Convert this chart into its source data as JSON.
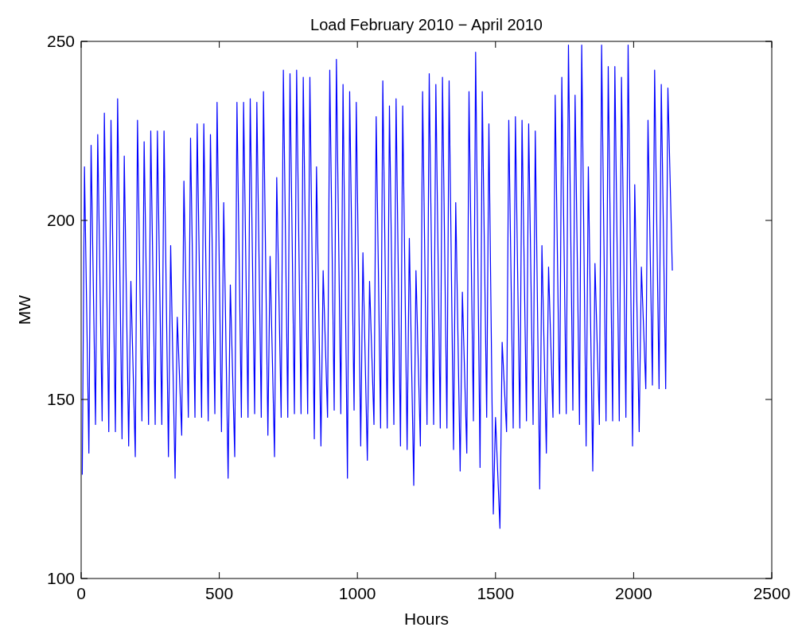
{
  "chart_data": {
    "type": "line",
    "title": "Load February 2010 − April 2010",
    "xlabel": "Hours",
    "ylabel": "MW",
    "xlim": [
      0,
      2500
    ],
    "xticks": [
      0,
      500,
      1000,
      1500,
      2000,
      2500
    ],
    "ylim": [
      100,
      250
    ],
    "yticks": [
      100,
      150,
      200,
      250
    ],
    "grid": false,
    "series": [
      {
        "color": "#0000ff",
        "x": [
          4,
          12,
          28,
          36,
          52,
          60,
          76,
          84,
          100,
          108,
          124,
          132,
          148,
          156,
          172,
          180,
          196,
          204,
          220,
          228,
          244,
          252,
          268,
          276,
          292,
          300,
          316,
          324,
          340,
          348,
          364,
          372,
          388,
          396,
          412,
          420,
          436,
          444,
          460,
          468,
          484,
          492,
          508,
          516,
          532,
          540,
          556,
          564,
          580,
          588,
          604,
          612,
          628,
          636,
          652,
          660,
          676,
          684,
          700,
          708,
          724,
          732,
          748,
          756,
          772,
          780,
          796,
          804,
          820,
          828,
          844,
          852,
          868,
          876,
          892,
          900,
          916,
          924,
          940,
          948,
          964,
          972,
          988,
          996,
          1012,
          1020,
          1036,
          1044,
          1060,
          1068,
          1084,
          1092,
          1108,
          1116,
          1132,
          1140,
          1156,
          1164,
          1180,
          1188,
          1204,
          1212,
          1228,
          1236,
          1252,
          1260,
          1276,
          1284,
          1300,
          1308,
          1324,
          1332,
          1348,
          1356,
          1372,
          1380,
          1396,
          1404,
          1420,
          1428,
          1444,
          1452,
          1468,
          1476,
          1492,
          1500,
          1516,
          1524,
          1540,
          1548,
          1564,
          1572,
          1588,
          1596,
          1612,
          1620,
          1636,
          1644,
          1660,
          1668,
          1684,
          1692,
          1708,
          1716,
          1732,
          1740,
          1756,
          1764,
          1780,
          1788,
          1804,
          1812,
          1828,
          1836,
          1852,
          1860,
          1876,
          1884,
          1900,
          1908,
          1924,
          1932,
          1948,
          1956,
          1972,
          1980,
          1996,
          2004,
          2020,
          2028,
          2044,
          2052,
          2068,
          2076,
          2092,
          2100,
          2116,
          2124,
          2140
        ],
        "values": [
          129,
          215,
          135,
          221,
          143,
          224,
          144,
          230,
          141,
          228,
          141,
          234,
          139,
          218,
          137,
          183,
          134,
          228,
          144,
          222,
          143,
          225,
          143,
          225,
          143,
          225,
          134,
          193,
          128,
          173,
          140,
          211,
          145,
          223,
          145,
          227,
          145,
          227,
          144,
          224,
          146,
          233,
          141,
          205,
          128,
          182,
          134,
          233,
          145,
          233,
          145,
          234,
          146,
          233,
          145,
          236,
          140,
          190,
          134,
          212,
          145,
          242,
          145,
          241,
          146,
          242,
          146,
          240,
          146,
          240,
          139,
          215,
          137,
          186,
          145,
          242,
          147,
          245,
          146,
          238,
          128,
          236,
          147,
          233,
          137,
          191,
          133,
          183,
          143,
          229,
          142,
          239,
          142,
          232,
          143,
          234,
          137,
          232,
          136,
          195,
          126,
          186,
          137,
          236,
          143,
          241,
          143,
          238,
          142,
          240,
          142,
          239,
          136,
          205,
          130,
          180,
          135,
          236,
          144,
          247,
          131,
          236,
          145,
          227,
          118,
          145,
          114,
          166,
          141,
          228,
          142,
          229,
          142,
          228,
          144,
          227,
          143,
          225,
          125,
          193,
          135,
          187,
          145,
          235,
          146,
          240,
          146,
          249,
          147,
          235,
          143,
          249,
          137,
          215,
          130,
          188,
          143,
          249,
          144,
          243,
          144,
          243,
          144,
          240,
          145,
          249,
          137,
          210,
          141,
          187,
          153,
          228,
          154,
          242,
          153,
          238,
          153,
          237,
          186
        ]
      }
    ]
  }
}
